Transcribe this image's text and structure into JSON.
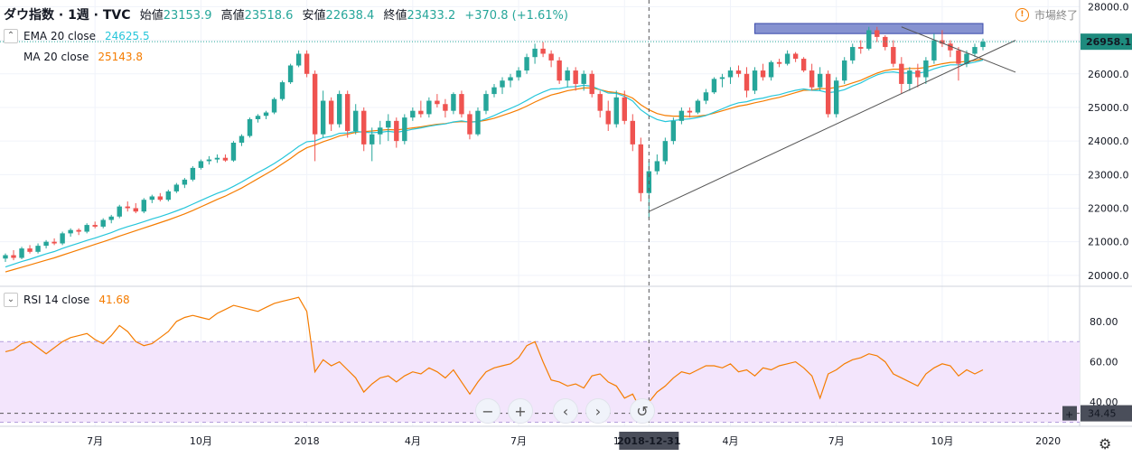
{
  "header": {
    "symbol": "ダウ指数 · 1週 · TVC",
    "open_label": "始値",
    "open": "23153.9",
    "high_label": "高値",
    "high": "23518.6",
    "low_label": "安値",
    "low": "22638.4",
    "close_label": "終値",
    "close": "23433.2",
    "change": "+370.8 (+1.61%)",
    "market_status": "市場終了"
  },
  "indicators": {
    "ema": {
      "name": "EMA 20 close",
      "value": "24625.5",
      "color": "#26c6da"
    },
    "ma": {
      "name": "MA 20 close",
      "value": "25143.8",
      "color": "#f57c00"
    },
    "rsi": {
      "name": "RSI 14 close",
      "value": "41.68",
      "color": "#f57c00"
    }
  },
  "colors": {
    "up": "#26a69a",
    "down": "#ef5350",
    "rsi_band": "#f3e5fc",
    "rect": "#7986cb"
  },
  "price_axis": {
    "ticks": [
      "28000.0",
      "27000.0",
      "26000.0",
      "25000.0",
      "24000.0",
      "23000.0",
      "22000.0",
      "21000.0",
      "20000.0"
    ],
    "last_price_label": "26958.1",
    "last_price": 26958.1
  },
  "rsi_axis": {
    "ticks": [
      "80.00",
      "60.00",
      "40.00"
    ],
    "cursor_label": "34.45",
    "cursor_value": 34.45,
    "upper": 70,
    "lower": 30
  },
  "time_axis": {
    "ticks": [
      "7月",
      "10月",
      "2018",
      "4月",
      "7月",
      "10月",
      "2018-12-31",
      "4月",
      "7月",
      "10月",
      "2020"
    ],
    "crosshair_label": "2018-12-31"
  },
  "nav_icons": [
    "minus-icon",
    "plus-icon",
    "chevron-left-icon",
    "chevron-right-icon",
    "reset-icon"
  ],
  "chart_data": {
    "type": "candlestick",
    "title": "ダウ指数 · 1週 · TVC",
    "ylim": [
      19700,
      28200
    ],
    "candles": [
      [
        20500,
        20650,
        20400,
        20600
      ],
      [
        20600,
        20750,
        20450,
        20520
      ],
      [
        20520,
        20850,
        20480,
        20800
      ],
      [
        20800,
        20900,
        20650,
        20700
      ],
      [
        20700,
        20950,
        20650,
        20880
      ],
      [
        20880,
        21050,
        20800,
        21000
      ],
      [
        21000,
        21100,
        20900,
        20950
      ],
      [
        20950,
        21300,
        20900,
        21250
      ],
      [
        21250,
        21400,
        21150,
        21350
      ],
      [
        21350,
        21400,
        21200,
        21300
      ],
      [
        21300,
        21550,
        21250,
        21500
      ],
      [
        21500,
        21600,
        21400,
        21450
      ],
      [
        21450,
        21700,
        21400,
        21650
      ],
      [
        21650,
        21800,
        21550,
        21750
      ],
      [
        21750,
        22100,
        21700,
        22050
      ],
      [
        22050,
        22200,
        21900,
        22000
      ],
      [
        22000,
        22150,
        21850,
        21900
      ],
      [
        21900,
        22300,
        21850,
        22250
      ],
      [
        22250,
        22400,
        22150,
        22350
      ],
      [
        22350,
        22450,
        22200,
        22250
      ],
      [
        22250,
        22550,
        22200,
        22500
      ],
      [
        22500,
        22750,
        22450,
        22700
      ],
      [
        22700,
        22900,
        22600,
        22850
      ],
      [
        22850,
        23250,
        22800,
        23200
      ],
      [
        23200,
        23450,
        23150,
        23400
      ],
      [
        23400,
        23550,
        23300,
        23450
      ],
      [
        23450,
        23600,
        23350,
        23500
      ],
      [
        23500,
        23600,
        23380,
        23420
      ],
      [
        23420,
        24000,
        23380,
        23950
      ],
      [
        23950,
        24200,
        23850,
        24150
      ],
      [
        24150,
        24700,
        24100,
        24650
      ],
      [
        24650,
        24800,
        24550,
        24750
      ],
      [
        24750,
        24900,
        24650,
        24850
      ],
      [
        24850,
        25300,
        24800,
        25250
      ],
      [
        25250,
        25800,
        25200,
        25750
      ],
      [
        25750,
        26300,
        25700,
        26250
      ],
      [
        26250,
        26700,
        26200,
        26600
      ],
      [
        26600,
        26700,
        25900,
        26000
      ],
      [
        26000,
        26100,
        23400,
        24200
      ],
      [
        24200,
        25500,
        24100,
        25200
      ],
      [
        25200,
        25300,
        24300,
        24500
      ],
      [
        24500,
        25500,
        24400,
        25400
      ],
      [
        25400,
        25500,
        24100,
        24300
      ],
      [
        24300,
        25100,
        24200,
        24900
      ],
      [
        24900,
        25000,
        23700,
        23900
      ],
      [
        23900,
        24400,
        23400,
        24200
      ],
      [
        24200,
        24600,
        23900,
        24400
      ],
      [
        24400,
        24800,
        24000,
        24600
      ],
      [
        24600,
        24700,
        23800,
        24000
      ],
      [
        24000,
        24800,
        23900,
        24700
      ],
      [
        24700,
        25000,
        24600,
        24900
      ],
      [
        24900,
        25200,
        24700,
        24800
      ],
      [
        24800,
        25300,
        24700,
        25200
      ],
      [
        25200,
        25400,
        25000,
        25100
      ],
      [
        25100,
        25250,
        24700,
        24900
      ],
      [
        24900,
        25450,
        24800,
        25400
      ],
      [
        25400,
        25500,
        24700,
        24800
      ],
      [
        24800,
        24900,
        24050,
        24200
      ],
      [
        24200,
        25000,
        24150,
        24900
      ],
      [
        24900,
        25500,
        24800,
        25400
      ],
      [
        25400,
        25700,
        25300,
        25600
      ],
      [
        25600,
        25900,
        25400,
        25800
      ],
      [
        25800,
        26000,
        25600,
        25900
      ],
      [
        25900,
        26200,
        25800,
        26100
      ],
      [
        26100,
        26600,
        26000,
        26500
      ],
      [
        26500,
        26900,
        26300,
        26750
      ],
      [
        26750,
        26950,
        26500,
        26600
      ],
      [
        26600,
        26700,
        26200,
        26400
      ],
      [
        26400,
        26500,
        25700,
        25800
      ],
      [
        25800,
        26200,
        25600,
        26100
      ],
      [
        26100,
        26200,
        25500,
        25700
      ],
      [
        25700,
        26100,
        25500,
        26000
      ],
      [
        26000,
        26100,
        25300,
        25400
      ],
      [
        25400,
        25500,
        24700,
        24900
      ],
      [
        24900,
        25200,
        24300,
        24500
      ],
      [
        24500,
        25500,
        24400,
        25300
      ],
      [
        25300,
        25500,
        24500,
        24600
      ],
      [
        24600,
        24800,
        23700,
        23900
      ],
      [
        23900,
        24100,
        22200,
        22450
      ],
      [
        22450,
        23400,
        21700,
        23100
      ],
      [
        23100,
        23600,
        23000,
        23400
      ],
      [
        23400,
        24100,
        23300,
        24000
      ],
      [
        24000,
        24700,
        23900,
        24600
      ],
      [
        24600,
        25000,
        24500,
        24900
      ],
      [
        24900,
        25000,
        24700,
        24850
      ],
      [
        24850,
        25250,
        24800,
        25200
      ],
      [
        25200,
        25550,
        25100,
        25450
      ],
      [
        25450,
        25900,
        25400,
        25850
      ],
      [
        25850,
        26000,
        25600,
        25900
      ],
      [
        25900,
        26200,
        25700,
        26100
      ],
      [
        26100,
        26250,
        25900,
        26000
      ],
      [
        26000,
        26200,
        25300,
        25500
      ],
      [
        25500,
        26200,
        25400,
        26100
      ],
      [
        26100,
        26300,
        25800,
        25900
      ],
      [
        25900,
        26400,
        25800,
        26350
      ],
      [
        26350,
        26450,
        26200,
        26300
      ],
      [
        26300,
        26700,
        26250,
        26600
      ],
      [
        26600,
        26650,
        26350,
        26450
      ],
      [
        26450,
        26500,
        26050,
        26100
      ],
      [
        26100,
        26300,
        25500,
        25600
      ],
      [
        25600,
        26200,
        25500,
        26000
      ],
      [
        26000,
        26100,
        24700,
        24800
      ],
      [
        24800,
        25900,
        24700,
        25800
      ],
      [
        25800,
        26500,
        25700,
        26400
      ],
      [
        26400,
        26900,
        26300,
        26800
      ],
      [
        26800,
        27000,
        26600,
        26750
      ],
      [
        26750,
        27400,
        26700,
        27300
      ],
      [
        27300,
        27400,
        26950,
        27100
      ],
      [
        27100,
        27150,
        26700,
        26800
      ],
      [
        26800,
        27000,
        26200,
        26300
      ],
      [
        26300,
        26500,
        25400,
        25700
      ],
      [
        25700,
        26200,
        25500,
        26100
      ],
      [
        26100,
        26300,
        25600,
        25900
      ],
      [
        25900,
        26500,
        25700,
        26400
      ],
      [
        26400,
        27200,
        26300,
        27000
      ],
      [
        27000,
        27300,
        26800,
        26900
      ],
      [
        26900,
        27000,
        26500,
        26700
      ],
      [
        26700,
        26800,
        25800,
        26300
      ],
      [
        26300,
        26700,
        26200,
        26600
      ],
      [
        26600,
        26900,
        26500,
        26800
      ],
      [
        26800,
        27050,
        26700,
        26958
      ]
    ],
    "ema20": [
      20250,
      20330,
      20410,
      20480,
      20560,
      20640,
      20710,
      20800,
      20880,
      20960,
      21040,
      21110,
      21190,
      21270,
      21370,
      21450,
      21520,
      21600,
      21680,
      21750,
      21830,
      21920,
      22010,
      22120,
      22230,
      22340,
      22440,
      22530,
      22650,
      22780,
      22920,
      23060,
      23190,
      23330,
      23490,
      23660,
      23840,
      23980,
      24000,
      24100,
      24140,
      24230,
      24240,
      24290,
      24260,
      24250,
      24260,
      24290,
      24260,
      24300,
      24350,
      24390,
      24440,
      24480,
      24510,
      24570,
      24600,
      24560,
      24580,
      24660,
      24760,
      24870,
      24970,
      25080,
      25210,
      25350,
      25460,
      25550,
      25560,
      25610,
      25620,
      25660,
      25630,
      25530,
      25430,
      25420,
      25330,
      25190,
      24930,
      24760,
      24640,
      24580,
      24610,
      24640,
      24660,
      24700,
      24760,
      24860,
      24960,
      25060,
      25140,
      25170,
      25240,
      25280,
      25340,
      25380,
      25450,
      25510,
      25550,
      25510,
      25500,
      25440,
      25470,
      25530,
      25640,
      25730,
      25860,
      25970,
      26040,
      26060,
      26020,
      26030,
      26020,
      26060,
      26150,
      26220,
      26270,
      26270,
      26300,
      26350,
      26410
    ],
    "ma20": [
      20100,
      20170,
      20240,
      20310,
      20380,
      20450,
      20520,
      20600,
      20680,
      20760,
      20840,
      20920,
      21000,
      21080,
      21170,
      21250,
      21330,
      21410,
      21490,
      21570,
      21650,
      21740,
      21830,
      21930,
      22040,
      22150,
      22260,
      22360,
      22480,
      22600,
      22740,
      22880,
      23020,
      23160,
      23320,
      23480,
      23660,
      23800,
      23880,
      23980,
      24060,
      24150,
      24200,
      24260,
      24280,
      24300,
      24320,
      24340,
      24330,
      24360,
      24390,
      24420,
      24460,
      24500,
      24520,
      24560,
      24580,
      24570,
      24580,
      24620,
      24680,
      24760,
      24840,
      24930,
      25040,
      25160,
      25270,
      25370,
      25430,
      25500,
      25540,
      25580,
      25580,
      25530,
      25470,
      25440,
      25380,
      25280,
      25080,
      24930,
      24820,
      24760,
      24740,
      24740,
      24730,
      24740,
      24770,
      24830,
      24900,
      24970,
      25040,
      25080,
      25140,
      25190,
      25250,
      25300,
      25370,
      25440,
      25510,
      25520,
      25560,
      25560,
      25600,
      25650,
      25730,
      25810,
      25920,
      26020,
      26100,
      26140,
      26140,
      26160,
      26160,
      26190,
      26250,
      26300,
      26340,
      26350,
      26370,
      26400,
      26440
    ],
    "trendlines": [
      {
        "name": "support",
        "from": [
          79,
          21900
        ],
        "to": [
          124,
          27000
        ]
      },
      {
        "name": "resistance",
        "from": [
          110,
          27400
        ],
        "to": [
          124,
          26050
        ]
      }
    ],
    "rect": {
      "x0": 92,
      "x1": 120,
      "y0": 27200,
      "y1": 27500
    },
    "rsi": {
      "ylim": [
        28,
        97
      ],
      "values": [
        65,
        66,
        69,
        70,
        67,
        64,
        67,
        70,
        72,
        73,
        74,
        71,
        69,
        73,
        78,
        75,
        70,
        68,
        69,
        72,
        75,
        80,
        82,
        83,
        82,
        81,
        84,
        86,
        88,
        87,
        86,
        85,
        87,
        89,
        90,
        91,
        92,
        85,
        55,
        61,
        58,
        60,
        56,
        52,
        45,
        49,
        52,
        53,
        50,
        53,
        55,
        54,
        57,
        55,
        52,
        56,
        50,
        44,
        50,
        55,
        57,
        58,
        59,
        62,
        68,
        70,
        60,
        51,
        50,
        48,
        49,
        47,
        53,
        54,
        50,
        48,
        42,
        44,
        36,
        40,
        45,
        48,
        52,
        55,
        54,
        56,
        58,
        58,
        57,
        59,
        55,
        56,
        53,
        57,
        56,
        58,
        59,
        60,
        57,
        53,
        42,
        54,
        56,
        59,
        61,
        62,
        64,
        63,
        60,
        54,
        52,
        50,
        48,
        54,
        57,
        59,
        58,
        53,
        56,
        54,
        56
      ]
    }
  }
}
